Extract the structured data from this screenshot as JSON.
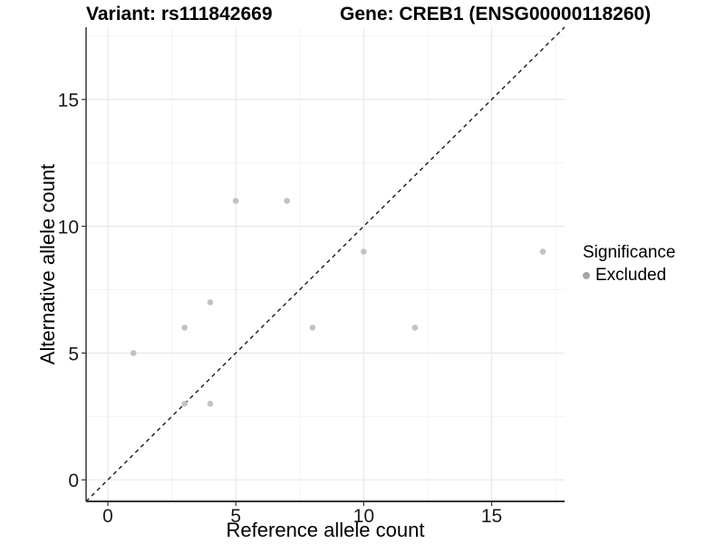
{
  "chart_data": {
    "type": "scatter",
    "title": "Variant: rs111842669        Gene: CREB1 (ENSG00000118260)",
    "title_variant": "Variant: rs111842669",
    "title_gene": "Gene: CREB1 (ENSG00000118260)",
    "xlabel": "Reference allele count",
    "ylabel": "Alternative allele count",
    "xlim": [
      -0.85,
      17.85
    ],
    "ylim": [
      -0.85,
      17.85
    ],
    "x_ticks": [
      0,
      5,
      10,
      15
    ],
    "x_tick_labels": [
      "0",
      "5",
      "10",
      "15"
    ],
    "y_ticks": [
      0,
      5,
      10,
      15
    ],
    "y_tick_labels": [
      "0",
      "5",
      "10",
      "15"
    ],
    "minor_ticks": [
      2.5,
      7.5,
      12.5,
      17.5
    ],
    "grid": true,
    "series": [
      {
        "name": "Excluded",
        "color": "#c2c2c2",
        "points": [
          [
            1,
            5
          ],
          [
            3,
            3
          ],
          [
            3,
            6
          ],
          [
            4,
            3
          ],
          [
            4,
            7
          ],
          [
            5,
            11
          ],
          [
            7,
            11
          ],
          [
            8,
            6
          ],
          [
            10,
            9
          ],
          [
            12,
            6
          ],
          [
            17,
            9
          ]
        ]
      }
    ],
    "reference_line": {
      "type": "identity",
      "style": "dashed",
      "color": "#1a1a1a",
      "from": [
        -0.85,
        -0.85
      ],
      "to": [
        17.85,
        17.85
      ]
    },
    "legend": {
      "title": "Significance",
      "position": "right",
      "items": [
        {
          "label": "Excluded",
          "color": "#a6a6a6"
        }
      ]
    },
    "colors": {
      "background": "#ffffff",
      "grid_major": "#e6e6e6",
      "grid_minor": "#f2f2f2",
      "axis": "#333333",
      "tick_text": "#1a1a1a",
      "title_text": "#000000"
    }
  }
}
